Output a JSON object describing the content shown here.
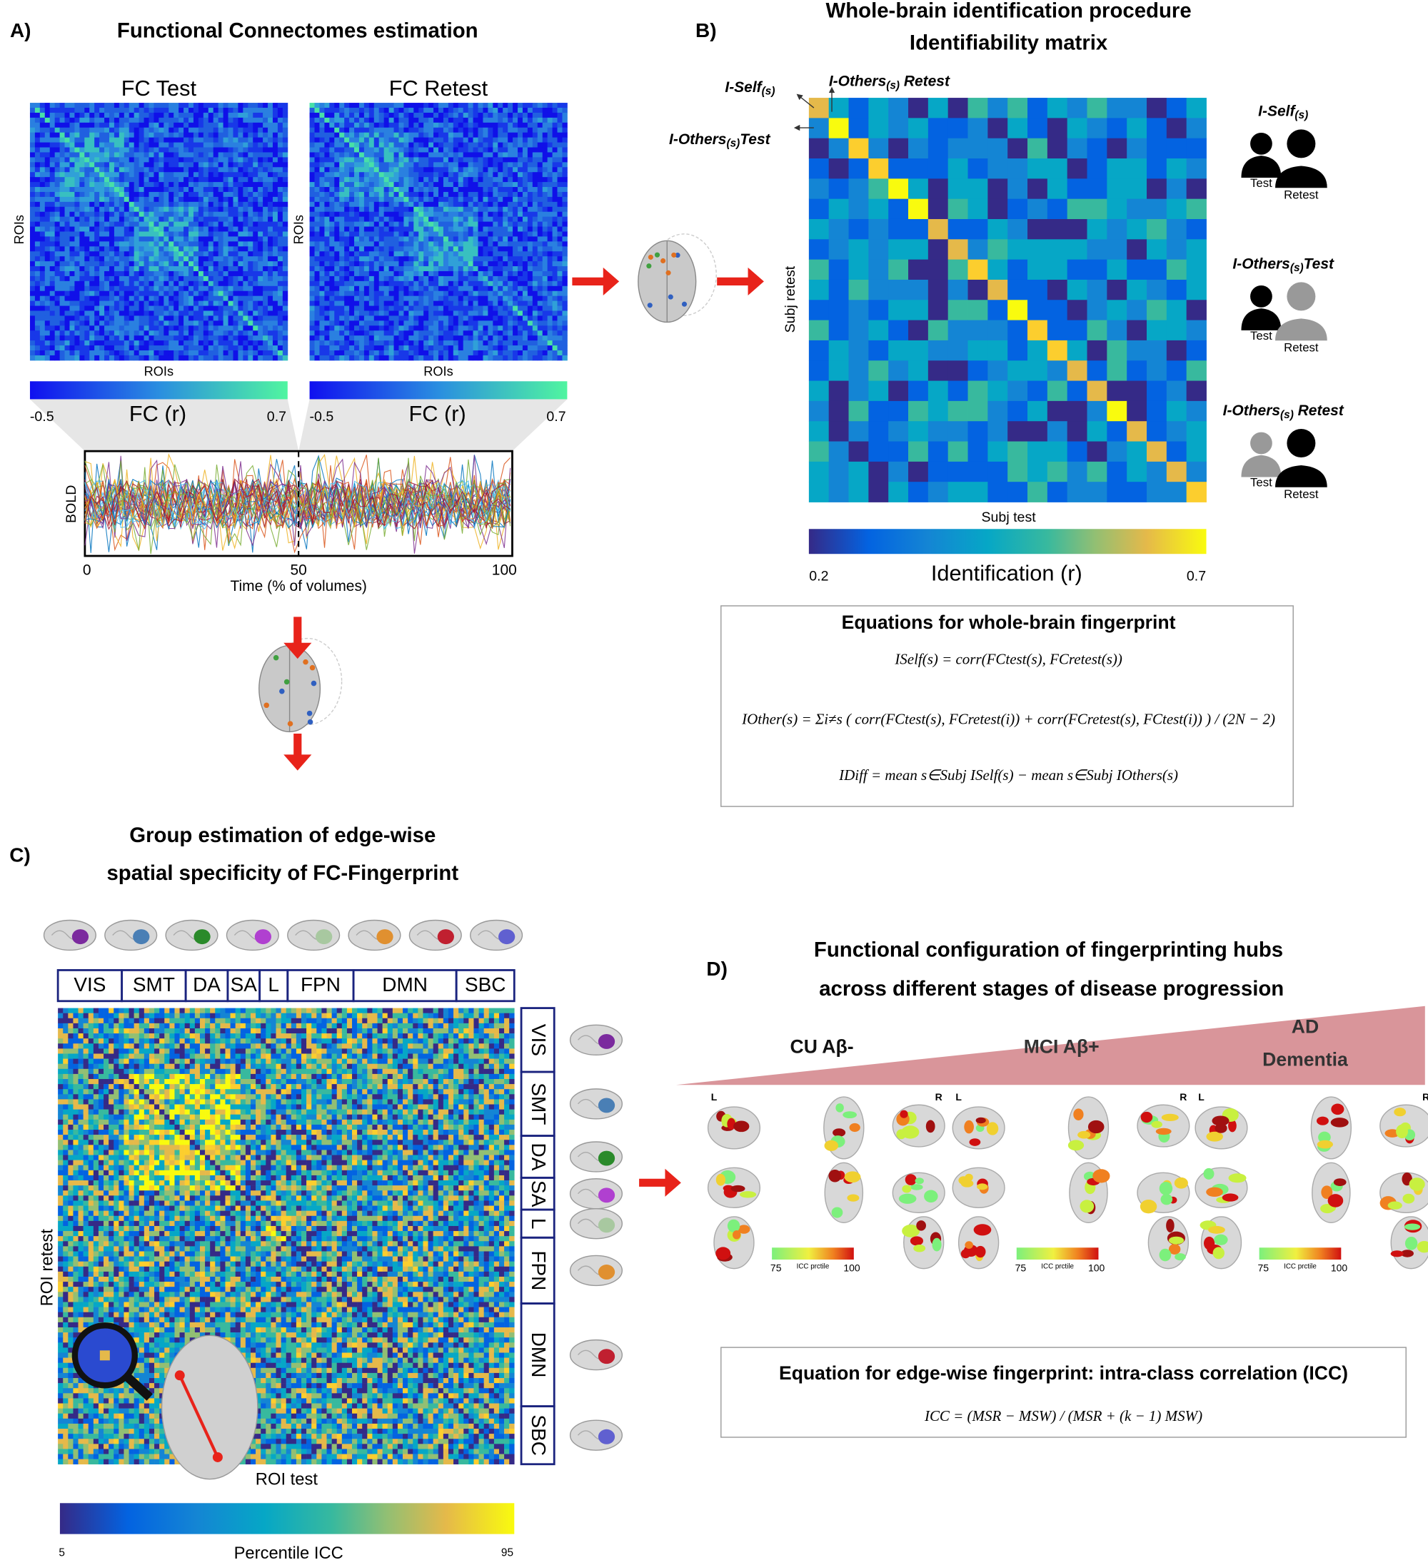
{
  "panels": {
    "a": {
      "letter": "A)",
      "title": "Functional Connectomes estimation",
      "fc_test": "FC Test",
      "fc_retest": "FC Retest",
      "roi_axis": "ROIs",
      "colorbar_label": "FC (r)",
      "colorbar_min": "-0.5",
      "colorbar_max": "0.7",
      "bold_label": "BOLD",
      "time_axis": "Time (% of volumes)",
      "time_ticks": [
        "0",
        "50",
        "100"
      ]
    },
    "b": {
      "letter": "B)",
      "title_line1": "Whole-brain identification procedure",
      "title_line2": "Identifiability matrix",
      "matrix_labels": [
        {
          "name": "I-Self",
          "sub": "(s)",
          "suffix": ""
        },
        {
          "name": "I-Others",
          "sub": "(s)",
          "suffix": " Retest"
        },
        {
          "name": "I-Others",
          "sub": "(s)",
          "suffix": "Test"
        }
      ],
      "legend": [
        {
          "name": "I-Self",
          "sub": "(s)",
          "suffix": "",
          "left": "Test",
          "right": "Retest"
        },
        {
          "name": "I-Others",
          "sub": "(s)",
          "suffix": "Test",
          "left": "Test",
          "right": "Retest"
        },
        {
          "name": "I-Others",
          "sub": "(s)",
          "suffix": " Retest",
          "left": "Test",
          "right": "Retest"
        }
      ],
      "y_axis": "Subj retest",
      "x_axis": "Subj test",
      "colorbar_label": "Identification (r)",
      "colorbar_min": "0.2",
      "colorbar_max": "0.7",
      "equations_title": "Equations for whole-brain fingerprint",
      "equations": [
        "ISelf(s) = corr(FCtest(s), FCretest(s))",
        "IOther(s) = Σi≠s ( corr(FCtest(s), FCretest(i)) + corr(FCretest(s), FCtest(i)) ) / (2N − 2)",
        "IDiff = mean s∈Subj ISelf(s) − mean s∈Subj IOthers(s)"
      ]
    },
    "c": {
      "letter": "C)",
      "title_line1": "Group estimation of edge-wise",
      "title_line2": "spatial specificity of FC-Fingerprint",
      "networks": [
        "VIS",
        "SMT",
        "DA",
        "SA",
        "L",
        "FPN",
        "DMN",
        "SBC"
      ],
      "y_axis": "ROI retest",
      "x_axis": "ROI test",
      "colorbar_label": "Percentile ICC",
      "colorbar_min": "5",
      "colorbar_max": "95"
    },
    "d": {
      "letter": "D)",
      "title_line1": "Functional configuration of fingerprinting hubs",
      "title_line2": "across different stages of disease progression",
      "stages": [
        [
          "CU Aβ-"
        ],
        [
          "MCI Aβ+"
        ],
        [
          "AD",
          "Dementia"
        ]
      ],
      "left": "L",
      "right": "R",
      "colorbar_label": "ICC prctile",
      "colorbar_min": "75",
      "colorbar_max": "100",
      "equation_title": "Equation for edge-wise fingerprint: intra-class correlation (ICC)",
      "equation": "ICC = (MSR − MSW) / (MSR + (k − 1) MSW)"
    }
  }
}
